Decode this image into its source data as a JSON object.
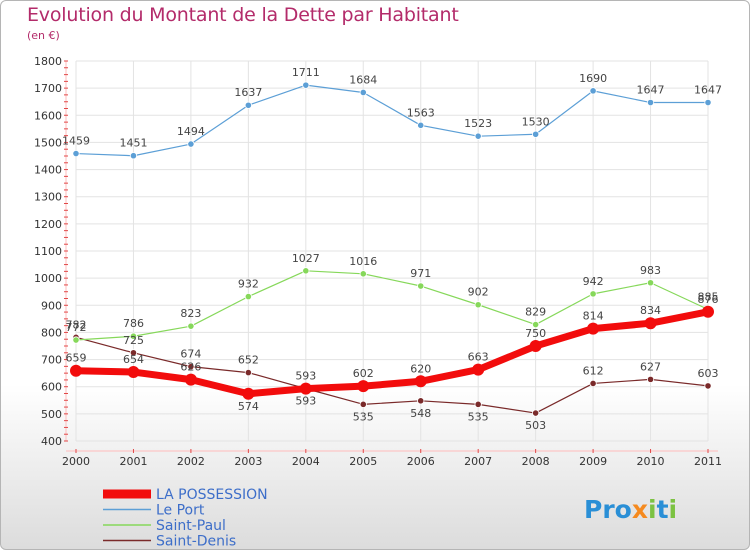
{
  "title": "Evolution du Montant de la Dette par Habitant",
  "subtitle": "(en €)",
  "brand": "Proxiti",
  "brand_letters": [
    {
      "ch": "P",
      "color": "#2a8fd6"
    },
    {
      "ch": "r",
      "color": "#2a8fd6"
    },
    {
      "ch": "o",
      "color": "#2a8fd6"
    },
    {
      "ch": "x",
      "color": "#f58a1f"
    },
    {
      "ch": "i",
      "color": "#7cc242"
    },
    {
      "ch": "t",
      "color": "#2a8fd6"
    },
    {
      "ch": "i",
      "color": "#7cc242"
    }
  ],
  "chart_data": {
    "type": "line",
    "title": "Evolution du Montant de la Dette par Habitant",
    "subtitle": "(en €)",
    "x": [
      "2000",
      "2001",
      "2002",
      "2003",
      "2004",
      "2005",
      "2006",
      "2007",
      "2008",
      "2009",
      "2010",
      "2011"
    ],
    "ylim": [
      400,
      1800
    ],
    "yticks": [
      400,
      500,
      600,
      700,
      800,
      900,
      1000,
      1100,
      1200,
      1300,
      1400,
      1500,
      1600,
      1700,
      1800
    ],
    "grid": true,
    "legend_position": "bottom-left",
    "series": [
      {
        "name": "Saint-Denis",
        "color": "#7a2a2a",
        "width": 1.2,
        "marker": 3.2,
        "values": [
          782,
          725,
          674,
          652,
          593,
          535,
          548,
          535,
          503,
          612,
          627,
          603
        ]
      },
      {
        "name": "Saint-Paul",
        "color": "#86d85a",
        "width": 1.2,
        "marker": 3.2,
        "values": [
          772,
          786,
          823,
          932,
          1027,
          1016,
          971,
          902,
          829,
          942,
          983,
          885
        ]
      },
      {
        "name": "Le Port",
        "color": "#5c9fd6",
        "width": 1.2,
        "marker": 3.2,
        "values": [
          1459,
          1451,
          1494,
          1637,
          1711,
          1684,
          1563,
          1523,
          1530,
          1690,
          1647,
          1647
        ]
      },
      {
        "name": "LA POSSESSION",
        "color": "#f20c0c",
        "width": 7,
        "marker": 6,
        "values": [
          659,
          654,
          626,
          574,
          593,
          602,
          620,
          663,
          750,
          814,
          834,
          876
        ]
      }
    ],
    "legend_order": [
      "LA POSSESSION",
      "Le Port",
      "Saint-Paul",
      "Saint-Denis"
    ],
    "label_offsets": {
      "Saint-Denis": [
        -1,
        -1,
        -1,
        -1,
        1,
        1,
        1,
        1,
        1,
        -1,
        -1,
        -1
      ],
      "Saint-Paul": [
        -1,
        -1,
        -1,
        -1,
        -1,
        -1,
        -1,
        -1,
        -1,
        -1,
        -1,
        -1
      ],
      "Le Port": [
        -1,
        -1,
        -1,
        -1,
        -1,
        -1,
        -1,
        -1,
        -1,
        -1,
        -1,
        -1
      ],
      "LA POSSESSION": [
        -1,
        -1,
        -1,
        1,
        -1,
        -1,
        -1,
        -1,
        -1,
        -1,
        -1,
        -1
      ]
    }
  }
}
